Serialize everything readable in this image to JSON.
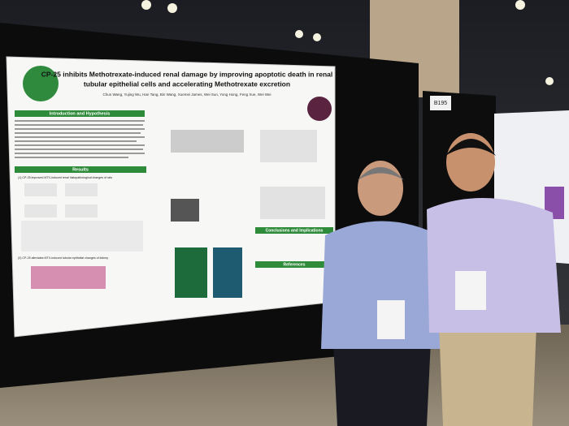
{
  "poster": {
    "title_lines": [
      "CP-25 inhibits Methotrexate-induced renal damage by improving apoptotic death in renal",
      "tubular epithelial cells and accelerating Methotrexate excretion"
    ],
    "authors": "Chun Wang, Yujing Wu, Han Tang, Bin Wang, Xuemei James, Wei Sun, Yong Hong, Feng Xue, Wei Wei",
    "sections": [
      "Introduction and Hypothesis",
      "Results",
      "Conclusions and Implications",
      "References"
    ],
    "panels": [
      "(1) CP-25 improved MTX-induced renal histopathological changes of rats",
      "(2) CP-25 alleviates MTX-induced tubular epithelial changes of kidney"
    ]
  },
  "booth": "B195"
}
